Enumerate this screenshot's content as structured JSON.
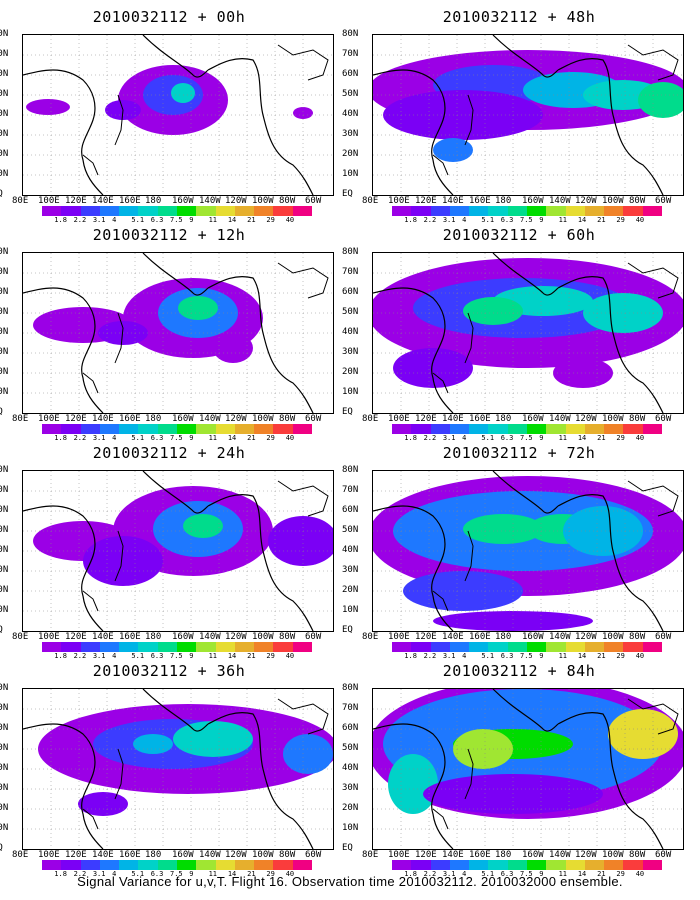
{
  "panels": [
    {
      "title": "2010032112 + 00h"
    },
    {
      "title": "2010032112 + 48h"
    },
    {
      "title": "2010032112 + 12h"
    },
    {
      "title": "2010032112 + 60h"
    },
    {
      "title": "2010032112 + 24h"
    },
    {
      "title": "2010032112 + 72h"
    },
    {
      "title": "2010032112 + 36h"
    },
    {
      "title": "2010032112 + 84h"
    }
  ],
  "y_labels": [
    "80N",
    "70N",
    "60N",
    "50N",
    "40N",
    "30N",
    "20N",
    "10N",
    "EQ"
  ],
  "x_labels": [
    "80E",
    "100E",
    "120E",
    "140E",
    "160E",
    "180",
    "160W",
    "140W",
    "120W",
    "100W",
    "80W",
    "60W"
  ],
  "colorbar": {
    "labels": [
      "1.8",
      "2.2",
      "3.1",
      "4",
      "5.1",
      "6.3",
      "7.5",
      "9",
      "11",
      "14",
      "21",
      "29",
      "40"
    ],
    "colors": [
      "#9b00e6",
      "#7b00f5",
      "#3c3cff",
      "#1e78ff",
      "#00b4e6",
      "#00d2c8",
      "#00dc8c",
      "#00dc00",
      "#a0e632",
      "#e6dc32",
      "#e6af2d",
      "#f08228",
      "#fa3c3c",
      "#f00082"
    ]
  },
  "caption": "Signal Variance for u,v,T. Flight 16. Observation time 2010032112. 2010032000 ensemble."
}
